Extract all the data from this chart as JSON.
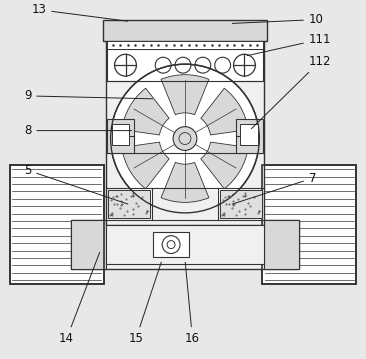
{
  "background_color": "#e8e8e8",
  "line_color": "#333333",
  "white": "#ffffff",
  "light_gray": "#f0f0f0",
  "mid_gray": "#d8d8d8",
  "dark_gray": "#b0b0b0",
  "labels": [
    "13",
    "10",
    "111",
    "112",
    "9",
    "8",
    "5",
    "7",
    "14",
    "15",
    "16"
  ]
}
